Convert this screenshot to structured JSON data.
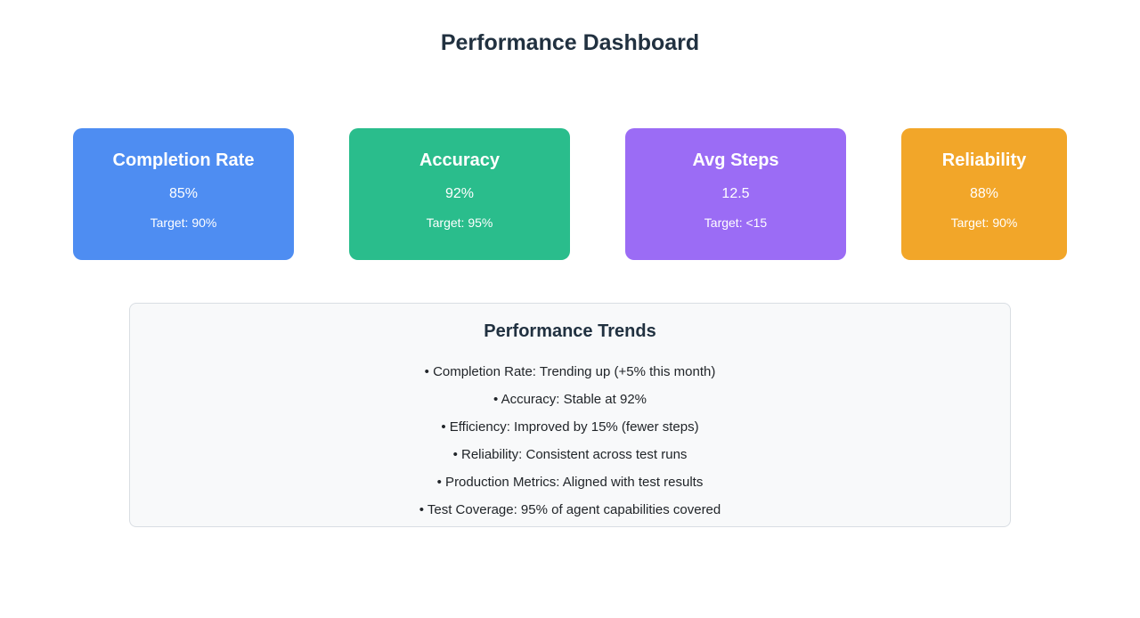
{
  "page": {
    "title": "Performance Dashboard"
  },
  "cards": [
    {
      "title": "Completion Rate",
      "value": "85%",
      "target": "Target: 90%",
      "color": "#4e8df2"
    },
    {
      "title": "Accuracy",
      "value": "92%",
      "target": "Target: 95%",
      "color": "#2abd8c"
    },
    {
      "title": "Avg Steps",
      "value": "12.5",
      "target": "Target: <15",
      "color": "#9b6cf5"
    },
    {
      "title": "Reliability",
      "value": "88%",
      "target": "Target: 90%",
      "color": "#f2a629"
    }
  ],
  "trends": {
    "title": "Performance Trends",
    "items": [
      "• Completion Rate: Trending up (+5% this month)",
      "• Accuracy: Stable at 92%",
      "• Efficiency: Improved by 15% (fewer steps)",
      "• Reliability: Consistent across test runs",
      "• Production Metrics: Aligned with test results",
      "• Test Coverage: 95% of agent capabilities covered"
    ]
  },
  "colors": {
    "heading_text": "#213140",
    "body_text": "#212529",
    "panel_background": "#f8f9fa",
    "panel_border": "#d9dee3"
  }
}
